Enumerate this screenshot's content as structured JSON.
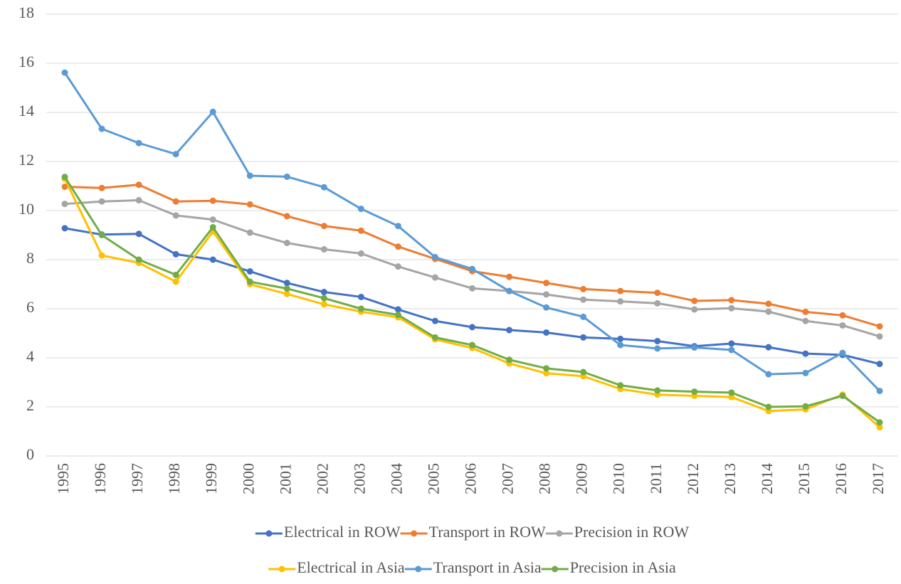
{
  "chart_data": {
    "type": "line",
    "categories": [
      "1995",
      "1996",
      "1997",
      "1998",
      "1999",
      "2000",
      "2001",
      "2002",
      "2003",
      "2004",
      "2005",
      "2006",
      "2007",
      "2008",
      "2009",
      "2010",
      "2011",
      "2012",
      "2013",
      "2014",
      "2015",
      "2016",
      "2017"
    ],
    "series": [
      {
        "name": "Electrical in ROW",
        "color": "#4472c4",
        "values": [
          9.28,
          9.02,
          9.05,
          8.22,
          8.0,
          7.52,
          7.05,
          6.68,
          6.48,
          5.97,
          5.5,
          5.25,
          5.13,
          5.03,
          4.83,
          4.77,
          4.68,
          4.47,
          4.58,
          4.43,
          4.17,
          4.12,
          3.75
        ]
      },
      {
        "name": "Transport in ROW",
        "color": "#ed7d31",
        "values": [
          10.97,
          10.92,
          11.05,
          10.37,
          10.4,
          10.25,
          9.77,
          9.37,
          9.18,
          8.53,
          8.03,
          7.53,
          7.3,
          7.05,
          6.8,
          6.72,
          6.65,
          6.32,
          6.35,
          6.2,
          5.87,
          5.73,
          5.28
        ]
      },
      {
        "name": "Precision in ROW",
        "color": "#a5a5a5",
        "values": [
          10.27,
          10.37,
          10.42,
          9.8,
          9.63,
          9.1,
          8.68,
          8.42,
          8.25,
          7.72,
          7.27,
          6.83,
          6.72,
          6.58,
          6.37,
          6.3,
          6.22,
          5.97,
          6.02,
          5.88,
          5.5,
          5.32,
          4.87
        ]
      },
      {
        "name": "Electrical in Asia",
        "color": "#ffc000",
        "values": [
          11.3,
          8.17,
          7.87,
          7.1,
          9.15,
          7.0,
          6.6,
          6.18,
          5.88,
          5.65,
          4.75,
          4.4,
          3.77,
          3.37,
          3.25,
          2.73,
          2.5,
          2.45,
          2.4,
          1.83,
          1.9,
          2.5,
          1.17
        ]
      },
      {
        "name": "Transport in Asia",
        "color": "#5b9bd5",
        "values": [
          15.62,
          13.33,
          12.75,
          12.3,
          14.02,
          11.42,
          11.38,
          10.95,
          10.07,
          9.37,
          8.1,
          7.62,
          6.72,
          6.05,
          5.67,
          4.52,
          4.38,
          4.42,
          4.32,
          3.33,
          3.38,
          4.2,
          2.65
        ]
      },
      {
        "name": "Precision in Asia",
        "color": "#70ad47",
        "values": [
          11.37,
          9.0,
          8.0,
          7.38,
          9.32,
          7.1,
          6.82,
          6.43,
          6.0,
          5.75,
          4.83,
          4.52,
          3.92,
          3.57,
          3.42,
          2.88,
          2.67,
          2.62,
          2.58,
          2.0,
          2.02,
          2.45,
          1.37
        ]
      }
    ],
    "ylim": [
      0,
      18
    ],
    "yticks": [
      0,
      2,
      4,
      6,
      8,
      10,
      12,
      14,
      16,
      18
    ],
    "grid": true
  }
}
